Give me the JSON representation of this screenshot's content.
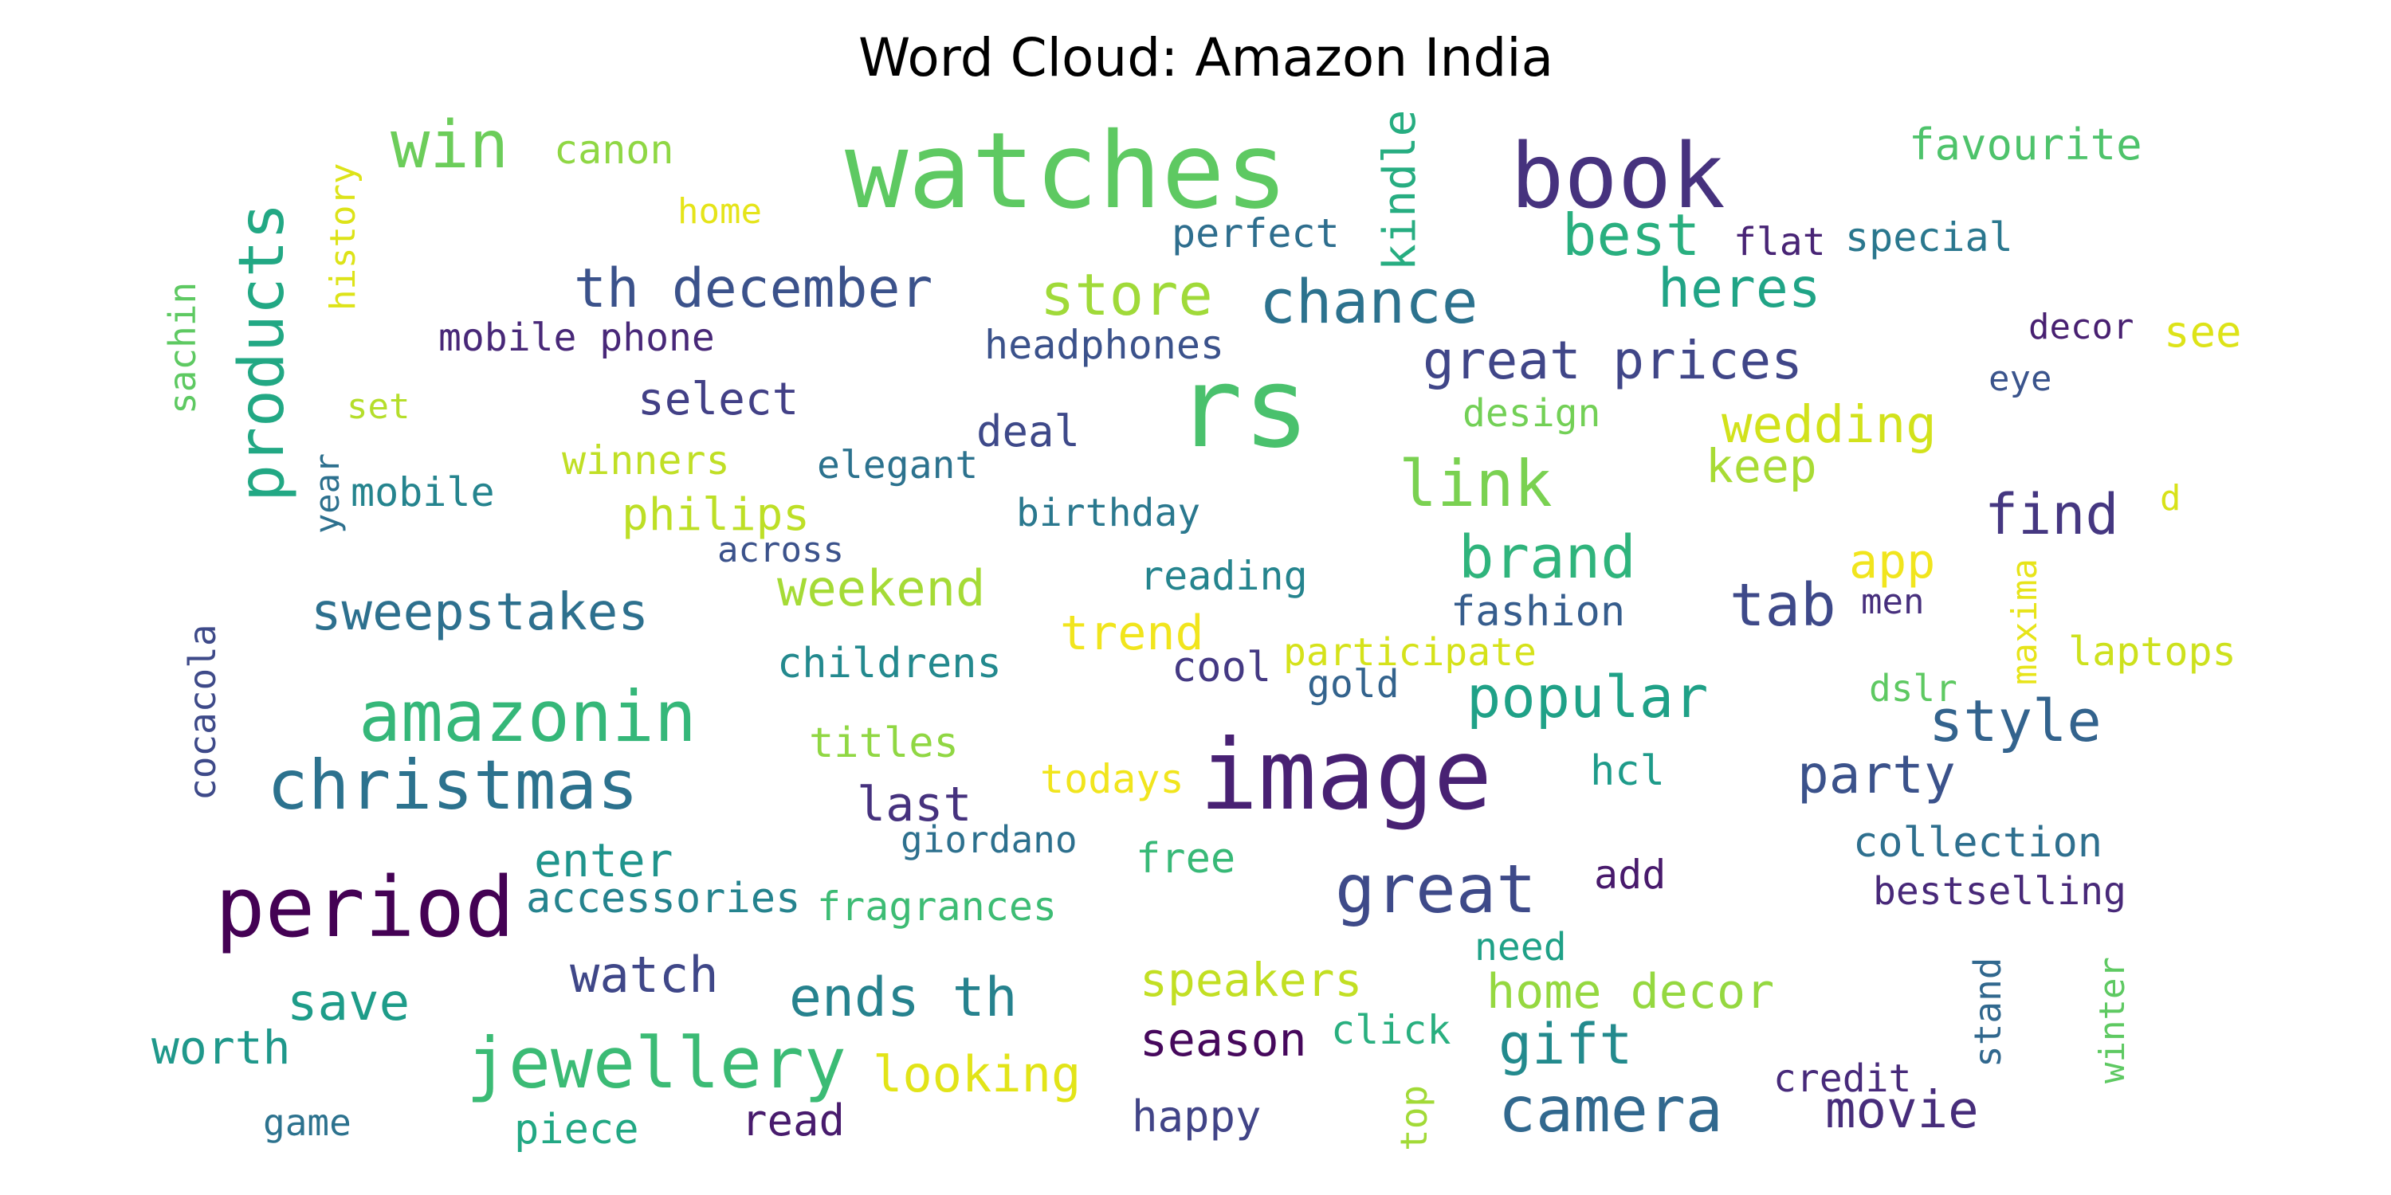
{
  "chart_data": {
    "type": "wordcloud",
    "title": "Word Cloud: Amazon India",
    "words": [
      {
        "text": "watches",
        "color": "#5ec962"
      },
      {
        "text": "rs",
        "color": "#4ac16d"
      },
      {
        "text": "book",
        "color": "#46327e"
      },
      {
        "text": "image",
        "color": "#482173"
      },
      {
        "text": "period",
        "color": "#440154"
      },
      {
        "text": "christmas",
        "color": "#2c728e"
      },
      {
        "text": "amazonin",
        "color": "#35b779"
      },
      {
        "text": "jewellery",
        "color": "#3bbb75"
      },
      {
        "text": "camera",
        "color": "#31688e"
      },
      {
        "text": "great",
        "color": "#3e4a89"
      },
      {
        "text": "products",
        "color": "#22a884"
      },
      {
        "text": "win",
        "color": "#6ccd5a"
      },
      {
        "text": "th december",
        "color": "#3b528b"
      },
      {
        "text": "store",
        "color": "#a0da39"
      },
      {
        "text": "chance",
        "color": "#2c728e"
      },
      {
        "text": "best",
        "color": "#29af7f"
      },
      {
        "text": "heres",
        "color": "#20a486"
      },
      {
        "text": "great prices",
        "color": "#404688"
      },
      {
        "text": "link",
        "color": "#7ad151"
      },
      {
        "text": "brand",
        "color": "#2fb47c"
      },
      {
        "text": "popular",
        "color": "#1fa187"
      },
      {
        "text": "style",
        "color": "#33638d"
      },
      {
        "text": "tab",
        "color": "#3e4989"
      },
      {
        "text": "find",
        "color": "#453781"
      },
      {
        "text": "wedding",
        "color": "#d2e21b"
      },
      {
        "text": "party",
        "color": "#3b528b"
      },
      {
        "text": "gift",
        "color": "#238a8d"
      },
      {
        "text": "movie",
        "color": "#472d7b"
      },
      {
        "text": "ends th",
        "color": "#26828e"
      },
      {
        "text": "watch",
        "color": "#3f4788"
      },
      {
        "text": "save",
        "color": "#1e9c89"
      },
      {
        "text": "weekend",
        "color": "#a5db36"
      },
      {
        "text": "sweepstakes",
        "color": "#2d708e"
      },
      {
        "text": "favourite",
        "color": "#4ec36b"
      },
      {
        "text": "kindle",
        "color": "#27ad81"
      },
      {
        "text": "canon",
        "color": "#8fd744"
      },
      {
        "text": "home",
        "color": "#e5e419"
      },
      {
        "text": "history",
        "color": "#dde318"
      },
      {
        "text": "sachin",
        "color": "#5ec962"
      },
      {
        "text": "perfect",
        "color": "#2e6e8e"
      },
      {
        "text": "flat",
        "color": "#482475"
      },
      {
        "text": "special",
        "color": "#2a778e"
      },
      {
        "text": "mobile phone",
        "color": "#482878"
      },
      {
        "text": "headphones",
        "color": "#3b528b"
      },
      {
        "text": "select",
        "color": "#424086"
      },
      {
        "text": "set",
        "color": "#b5de2b"
      },
      {
        "text": "design",
        "color": "#73d056"
      },
      {
        "text": "decor",
        "color": "#482071"
      },
      {
        "text": "see",
        "color": "#dde318"
      },
      {
        "text": "eye",
        "color": "#3a548c"
      },
      {
        "text": "deal",
        "color": "#3e4989"
      },
      {
        "text": "winners",
        "color": "#c0df25"
      },
      {
        "text": "elegant",
        "color": "#2c728e"
      },
      {
        "text": "keep",
        "color": "#a8db34"
      },
      {
        "text": "year",
        "color": "#2d708e"
      },
      {
        "text": "mobile",
        "color": "#25848e"
      },
      {
        "text": "philips",
        "color": "#bddf26"
      },
      {
        "text": "birthday",
        "color": "#2a788e"
      },
      {
        "text": "d",
        "color": "#d8e219"
      },
      {
        "text": "across",
        "color": "#3b528b"
      },
      {
        "text": "app",
        "color": "#f1e51d"
      },
      {
        "text": "reading",
        "color": "#25848e"
      },
      {
        "text": "fashion",
        "color": "#365d8d"
      },
      {
        "text": "maxima",
        "color": "#e7e419"
      },
      {
        "text": "men",
        "color": "#472f7d"
      },
      {
        "text": "trend",
        "color": "#f1e51d"
      },
      {
        "text": "cocacola",
        "color": "#3e4a89"
      },
      {
        "text": "childrens",
        "color": "#23898e"
      },
      {
        "text": "cool",
        "color": "#443983"
      },
      {
        "text": "participate",
        "color": "#d5e21a"
      },
      {
        "text": "gold",
        "color": "#33638d"
      },
      {
        "text": "laptops",
        "color": "#cde11d"
      },
      {
        "text": "dslr",
        "color": "#5ec962"
      },
      {
        "text": "titles",
        "color": "#90d743"
      },
      {
        "text": "todays",
        "color": "#f1e51d"
      },
      {
        "text": "last",
        "color": "#46327e"
      },
      {
        "text": "hcl",
        "color": "#1e9b8a"
      },
      {
        "text": "enter",
        "color": "#1f948c"
      },
      {
        "text": "giordano",
        "color": "#2d708e"
      },
      {
        "text": "free",
        "color": "#38b977"
      },
      {
        "text": "collection",
        "color": "#2e6f8e"
      },
      {
        "text": "add",
        "color": "#481a6c"
      },
      {
        "text": "accessories",
        "color": "#25838e"
      },
      {
        "text": "fragrances",
        "color": "#3dbc74"
      },
      {
        "text": "bestselling",
        "color": "#482979"
      },
      {
        "text": "need",
        "color": "#1fa187"
      },
      {
        "text": "speakers",
        "color": "#c2df23"
      },
      {
        "text": "home decor",
        "color": "#95d840"
      },
      {
        "text": "click",
        "color": "#29af7f"
      },
      {
        "text": "stand",
        "color": "#31688e"
      },
      {
        "text": "winter",
        "color": "#5ec962"
      },
      {
        "text": "season",
        "color": "#46085c"
      },
      {
        "text": "worth",
        "color": "#1f988b"
      },
      {
        "text": "looking",
        "color": "#e2e418"
      },
      {
        "text": "credit",
        "color": "#472a7a"
      },
      {
        "text": "top",
        "color": "#a2da37"
      },
      {
        "text": "game",
        "color": "#2c728e"
      },
      {
        "text": "piece",
        "color": "#22a884"
      },
      {
        "text": "read",
        "color": "#481b6d"
      },
      {
        "text": "happy",
        "color": "#414487"
      }
    ]
  }
}
